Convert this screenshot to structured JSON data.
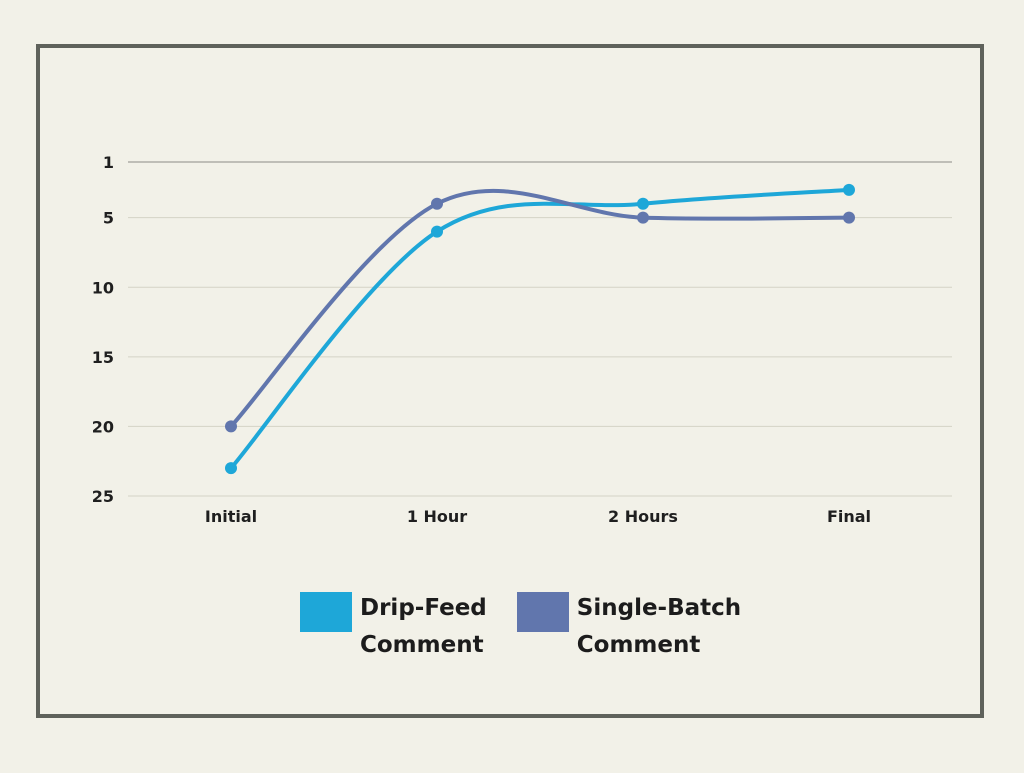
{
  "chart_data": {
    "type": "line",
    "title": "",
    "xlabel": "",
    "ylabel": "",
    "categories": [
      "Initial",
      "1 Hour",
      "2 Hours",
      "Final"
    ],
    "y_ticks": [
      1,
      5,
      10,
      15,
      20,
      25
    ],
    "ylim": [
      1,
      25
    ],
    "y_inverted": true,
    "grid": "horizontal",
    "legend_position": "bottom",
    "series": [
      {
        "name": "Drip-Feed Comment",
        "values": [
          23,
          6,
          4,
          3
        ],
        "color": "#1ea7d8"
      },
      {
        "name": "Single-Batch Comment",
        "values": [
          20,
          4,
          5,
          5
        ],
        "color": "#6176ad"
      }
    ]
  },
  "legend": {
    "items": [
      {
        "label": "Drip-Feed\nComment",
        "color": "#1ea7d8"
      },
      {
        "label": "Single-Batch\nComment",
        "color": "#6176ad"
      }
    ]
  }
}
